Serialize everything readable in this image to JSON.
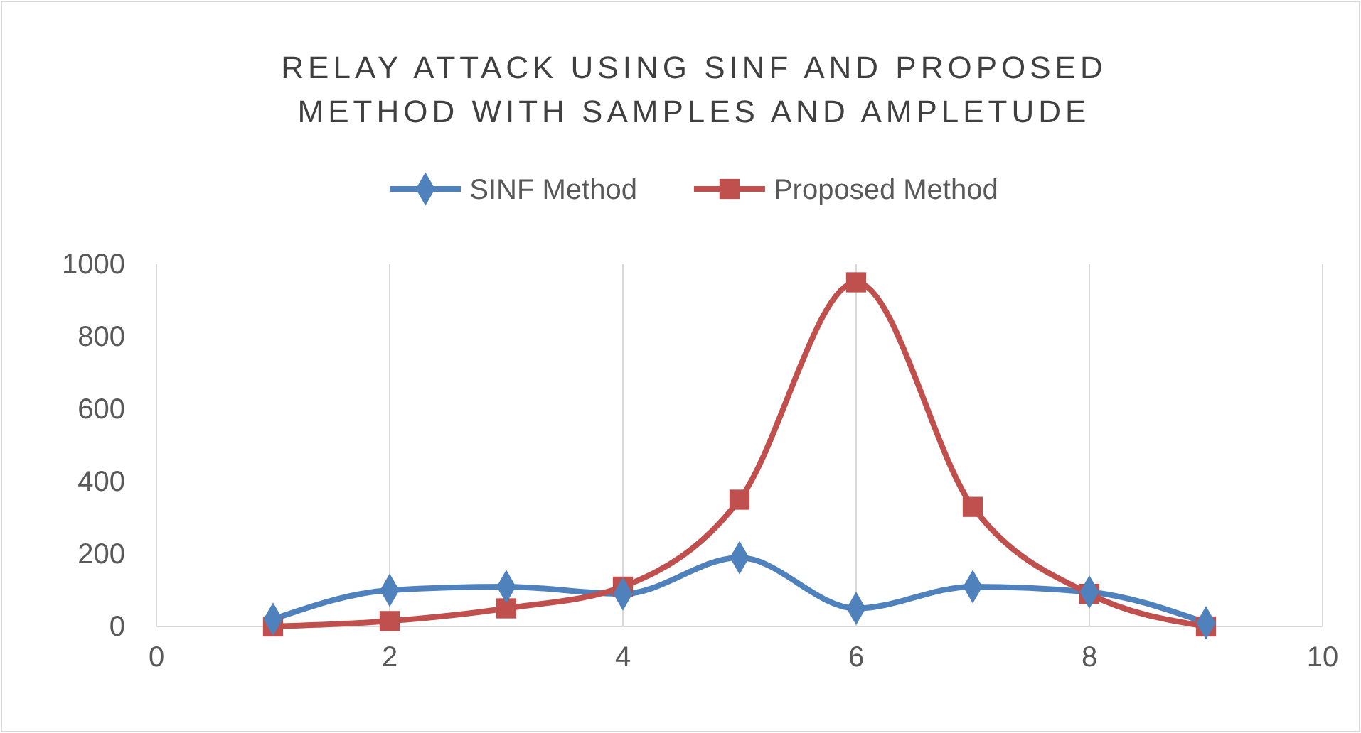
{
  "chart_data": {
    "type": "line",
    "title": "RELAY ATTACK USING SINF AND PROPOSED METHOD WITH SAMPLES AND AMPLETUDE",
    "x": [
      1,
      2,
      3,
      4,
      5,
      6,
      7,
      8,
      9
    ],
    "series": [
      {
        "name": "SINF Method",
        "color": "#4f81bd",
        "marker": "diamond",
        "values": [
          20,
          100,
          110,
          90,
          190,
          50,
          110,
          95,
          10
        ]
      },
      {
        "name": "Proposed Method",
        "color": "#c0504d",
        "marker": "square",
        "values": [
          0,
          15,
          50,
          110,
          350,
          950,
          330,
          90,
          0
        ]
      }
    ],
    "xlim": [
      0,
      10
    ],
    "xticks": [
      0,
      2,
      4,
      6,
      8,
      10
    ],
    "ylim": [
      0,
      1000
    ],
    "yticks": [
      0,
      200,
      400,
      600,
      800,
      1000
    ],
    "grid": "x",
    "legend": "top",
    "line_style": "solid"
  }
}
